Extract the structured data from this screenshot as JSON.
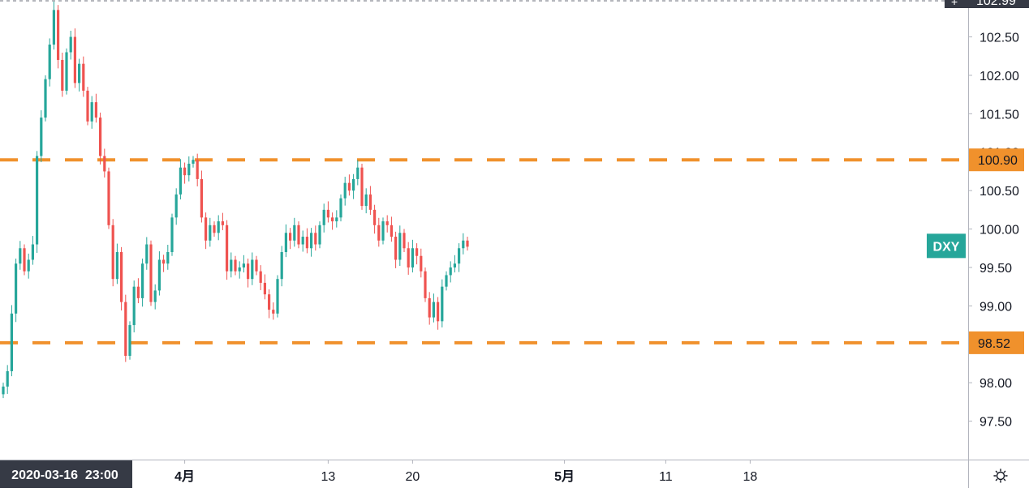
{
  "chart_data": {
    "type": "candlestick",
    "symbol": "DXY",
    "crosshair": {
      "time_label": "2020-03-16  23:00",
      "price_label": "102.99"
    },
    "y_ticks": [
      "102.50",
      "102.00",
      "101.50",
      "101.00",
      "100.50",
      "100.00",
      "99.50",
      "99.00",
      "98.50",
      "98.00",
      "97.50"
    ],
    "ylim": [
      97.0,
      102.98
    ],
    "x_ticks": [
      {
        "label": "4月",
        "bar": 43,
        "bold": true
      },
      {
        "label": "13",
        "bar": 77,
        "bold": false
      },
      {
        "label": "20",
        "bar": 97,
        "bold": false
      },
      {
        "label": "5月",
        "bar": 133,
        "bold": true
      },
      {
        "label": "11",
        "bar": 157,
        "bold": false
      },
      {
        "label": "18",
        "bar": 177,
        "bold": false
      }
    ],
    "levels": [
      {
        "value": 100.9,
        "label": "100.90",
        "color": "#F0912C"
      },
      {
        "value": 98.52,
        "label": "98.52",
        "color": "#F0912C"
      }
    ],
    "last_price_badge": {
      "label": "DXY",
      "value": 99.77,
      "color": "#26A69A"
    },
    "colors": {
      "up": "#26A69A",
      "down": "#EF5350",
      "axis_text": "#131722",
      "badge_dark": "#363A45",
      "grid_border": "#B2B5BE"
    },
    "closes": [
      97.95,
      98.15,
      98.9,
      99.55,
      99.75,
      99.45,
      99.6,
      99.8,
      100.95,
      101.45,
      101.95,
      102.4,
      102.85,
      102.2,
      101.8,
      102.3,
      102.5,
      101.9,
      102.15,
      101.8,
      101.4,
      101.65,
      101.45,
      100.95,
      100.75,
      100.05,
      99.35,
      99.7,
      99.05,
      98.35,
      98.75,
      99.25,
      99.1,
      99.55,
      99.8,
      99.05,
      99.2,
      99.6,
      99.55,
      99.7,
      100.15,
      100.45,
      100.8,
      100.7,
      100.85,
      100.9,
      100.65,
      100.15,
      99.85,
      100.05,
      99.95,
      100.1,
      100.05,
      99.45,
      99.6,
      99.45,
      99.5,
      99.55,
      99.35,
      99.6,
      99.45,
      99.3,
      99.15,
      98.95,
      98.9,
      99.35,
      99.7,
      99.95,
      99.85,
      100.05,
      99.8,
      99.9,
      99.75,
      99.95,
      99.8,
      100.05,
      100.25,
      100.15,
      100.1,
      100.15,
      100.4,
      100.6,
      100.5,
      100.65,
      100.8,
      100.3,
      100.45,
      100.25,
      100.05,
      99.85,
      100.1,
      100.05,
      99.9,
      99.6,
      99.95,
      99.75,
      99.5,
      99.75,
      99.65,
      99.45,
      99.1,
      98.85,
      99.05,
      98.8,
      99.25,
      99.4,
      99.5,
      99.55,
      99.75,
      99.85,
      99.77
    ],
    "bar_spacing": 5.2,
    "first_bar_x": 4
  }
}
